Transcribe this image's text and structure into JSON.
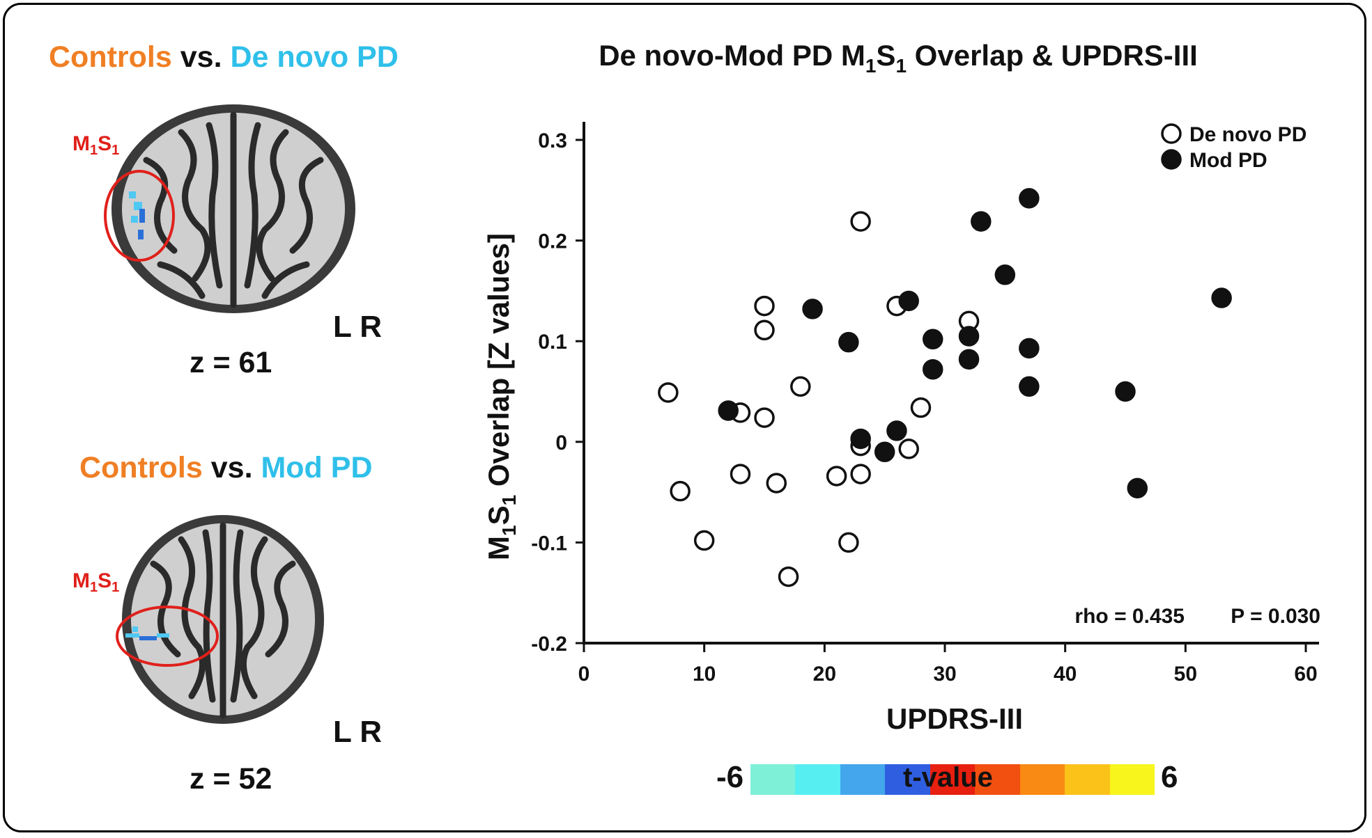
{
  "left_panel": {
    "top": {
      "label_a": "Controls",
      "label_vs": "vs.",
      "label_b": "De novo PD",
      "region_main": "M",
      "region_sub1": "1",
      "region_main2": "S",
      "region_sub2": "1",
      "orientation": "L R",
      "slice": "z = 61"
    },
    "bottom": {
      "label_a": "Controls",
      "label_vs": "vs.",
      "label_b": "Mod PD",
      "region_main": "M",
      "region_sub1": "1",
      "region_main2": "S",
      "region_sub2": "1",
      "orientation": "L R",
      "slice": "z = 52"
    }
  },
  "colorbar": {
    "min_label": "-6",
    "max_label": "6",
    "title": "t-value",
    "colors": [
      "#7ef0d8",
      "#57eef2",
      "#44a6ec",
      "#2f5fe0",
      "#e8200f",
      "#f25010",
      "#f98a14",
      "#fbc21a",
      "#f7f51c"
    ]
  },
  "chart_data": {
    "type": "scatter",
    "title_parts": [
      "De novo-Mod PD M",
      "1",
      "S",
      "1",
      " Overlap & UPDRS-III"
    ],
    "xlabel": "UPDRS-III",
    "ylabel_parts": [
      "M",
      "1",
      "S",
      "1",
      " Overlap [Z values]"
    ],
    "xlim": [
      0,
      60
    ],
    "ylim": [
      -0.2,
      0.3
    ],
    "xticks": [
      0,
      10,
      20,
      30,
      40,
      50,
      60
    ],
    "yticks": [
      -0.2,
      -0.1,
      0,
      0.1,
      0.2,
      0.3
    ],
    "ytick_labels": [
      "-0.2",
      "-0.1",
      "0",
      "0.1",
      "0.2",
      "0.3"
    ],
    "legend_position": "top-right",
    "annotation_rho": "rho = 0.435",
    "annotation_p": "P = 0.030",
    "series": [
      {
        "name": "De novo PD",
        "marker": "open-circle",
        "points": [
          [
            7,
            0.049
          ],
          [
            8,
            -0.049
          ],
          [
            10,
            -0.098
          ],
          [
            13,
            0.029
          ],
          [
            13,
            -0.032
          ],
          [
            15,
            0.135
          ],
          [
            15,
            0.111
          ],
          [
            15,
            0.024
          ],
          [
            16,
            -0.041
          ],
          [
            17,
            -0.134
          ],
          [
            18,
            0.055
          ],
          [
            21,
            -0.034
          ],
          [
            22,
            -0.1
          ],
          [
            23,
            0.219
          ],
          [
            23,
            -0.004
          ],
          [
            23,
            -0.032
          ],
          [
            26,
            0.135
          ],
          [
            27,
            -0.007
          ],
          [
            28,
            0.034
          ],
          [
            32,
            0.12
          ]
        ]
      },
      {
        "name": "Mod PD",
        "marker": "filled-circle",
        "points": [
          [
            12,
            0.031
          ],
          [
            19,
            0.132
          ],
          [
            22,
            0.099
          ],
          [
            23,
            0.003
          ],
          [
            25,
            -0.01
          ],
          [
            26,
            0.011
          ],
          [
            27,
            0.14
          ],
          [
            29,
            0.102
          ],
          [
            29,
            0.072
          ],
          [
            32,
            0.105
          ],
          [
            32,
            0.082
          ],
          [
            33,
            0.219
          ],
          [
            35,
            0.166
          ],
          [
            37,
            0.242
          ],
          [
            37,
            0.093
          ],
          [
            37,
            0.055
          ],
          [
            45,
            0.05
          ],
          [
            46,
            -0.046
          ],
          [
            53,
            0.143
          ]
        ]
      }
    ]
  }
}
